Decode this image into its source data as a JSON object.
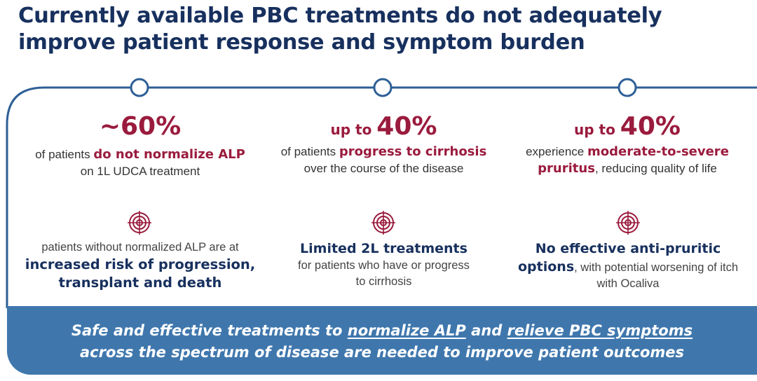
{
  "title": "Currently available PBC treatments do not adequately improve patient response and symptom burden",
  "columns": [
    {
      "stat_prefix": "~",
      "stat_value": "60%",
      "desc_lead": "of patients ",
      "desc_bold": "do not normalize ALP",
      "desc_tail": " on 1L UDCA treatment",
      "sub_lead": "patients without normalized ALP are at",
      "sub_bold": "increased risk of progression, transplant and death",
      "icon": "target-icon"
    },
    {
      "stat_prefix": "up to ",
      "stat_value": "40%",
      "desc_lead": "of patients ",
      "desc_bold": "progress to cirrhosis",
      "desc_tail": "over the course of the disease",
      "sub_head": "Limited 2L treatments",
      "sub_tail": "for patients who have or progress to cirrhosis",
      "icon": "target-icon"
    },
    {
      "stat_prefix": "up to ",
      "stat_value": "40%",
      "desc_lead": "experience ",
      "desc_bold": "moderate-to-severe pruritus",
      "desc_tail": ", reducing quality of life",
      "sub_head": "No effective anti-pruritic",
      "sub_bold2": "options",
      "sub_tail": ", with potential worsening of itch with Ocaliva",
      "icon": "target-icon"
    }
  ],
  "banner": {
    "part1": "Safe and effective treatments to ",
    "link1": "normalize ALP",
    "part2": " and ",
    "link2": "relieve PBC symptoms",
    "line2": "across the spectrum of disease are needed to improve patient outcomes"
  },
  "colors": {
    "navy": "#17305e",
    "crimson": "#9a1b3d",
    "banner_blue": "#3f77ad",
    "line_blue": "#2e5f96"
  }
}
